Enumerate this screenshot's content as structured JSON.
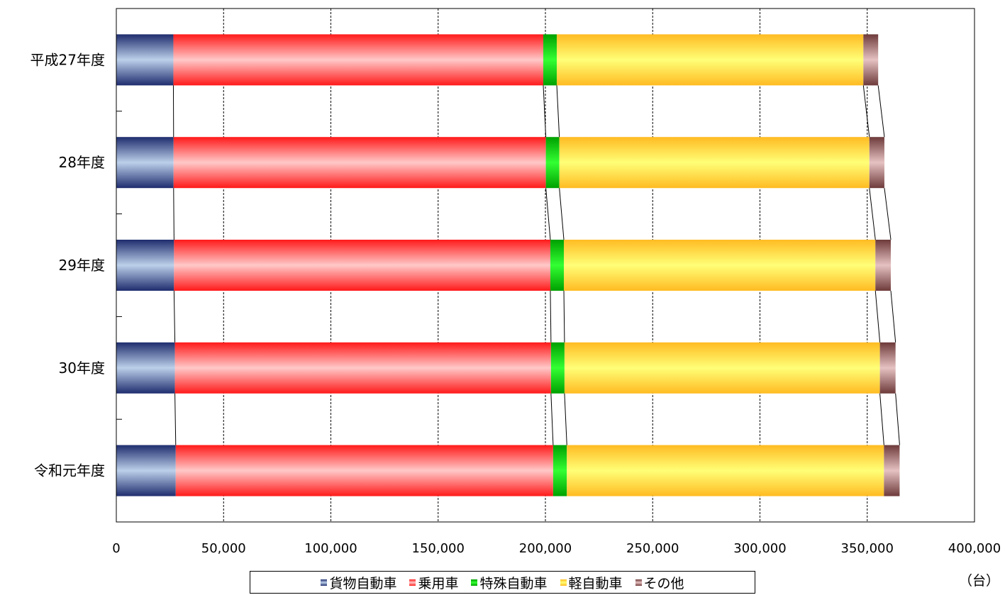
{
  "chart_data": {
    "type": "bar",
    "orientation": "horizontal",
    "stacked": true,
    "categories": [
      "平成27年度",
      "28年度",
      "29年度",
      "30年度",
      "令和元年度"
    ],
    "series": [
      {
        "name": "貨物自動車",
        "values": [
          26600,
          26700,
          26900,
          27300,
          27700
        ],
        "color": "#1f2d6e",
        "color_light": "#bcd0ea"
      },
      {
        "name": "乗用車",
        "values": [
          172400,
          173500,
          175400,
          175300,
          175900
        ],
        "color": "#ff1a1a",
        "color_light": "#ffc8c8"
      },
      {
        "name": "特殊自動車",
        "values": [
          6300,
          6300,
          6300,
          6300,
          6400
        ],
        "color": "#00a000",
        "color_light": "#33ff33"
      },
      {
        "name": "軽自動車",
        "values": [
          142900,
          144500,
          145200,
          147000,
          147800
        ],
        "color": "#ffbb22",
        "color_light": "#ffff77"
      },
      {
        "name": "その他",
        "values": [
          6900,
          7000,
          7200,
          7300,
          7300
        ],
        "color": "#6e3a3a",
        "color_light": "#e6c2c2"
      }
    ],
    "xlim": [
      0,
      400000
    ],
    "x_ticks": [
      0,
      50000,
      100000,
      150000,
      200000,
      250000,
      300000,
      350000,
      400000
    ],
    "x_tick_labels": [
      "0",
      "50,000",
      "100,000",
      "150,000",
      "200,000",
      "250,000",
      "300,000",
      "350,000",
      "400,000"
    ],
    "unit_label": "（台）",
    "grid": "vertical",
    "series_lines": true,
    "legend_position": "bottom"
  }
}
